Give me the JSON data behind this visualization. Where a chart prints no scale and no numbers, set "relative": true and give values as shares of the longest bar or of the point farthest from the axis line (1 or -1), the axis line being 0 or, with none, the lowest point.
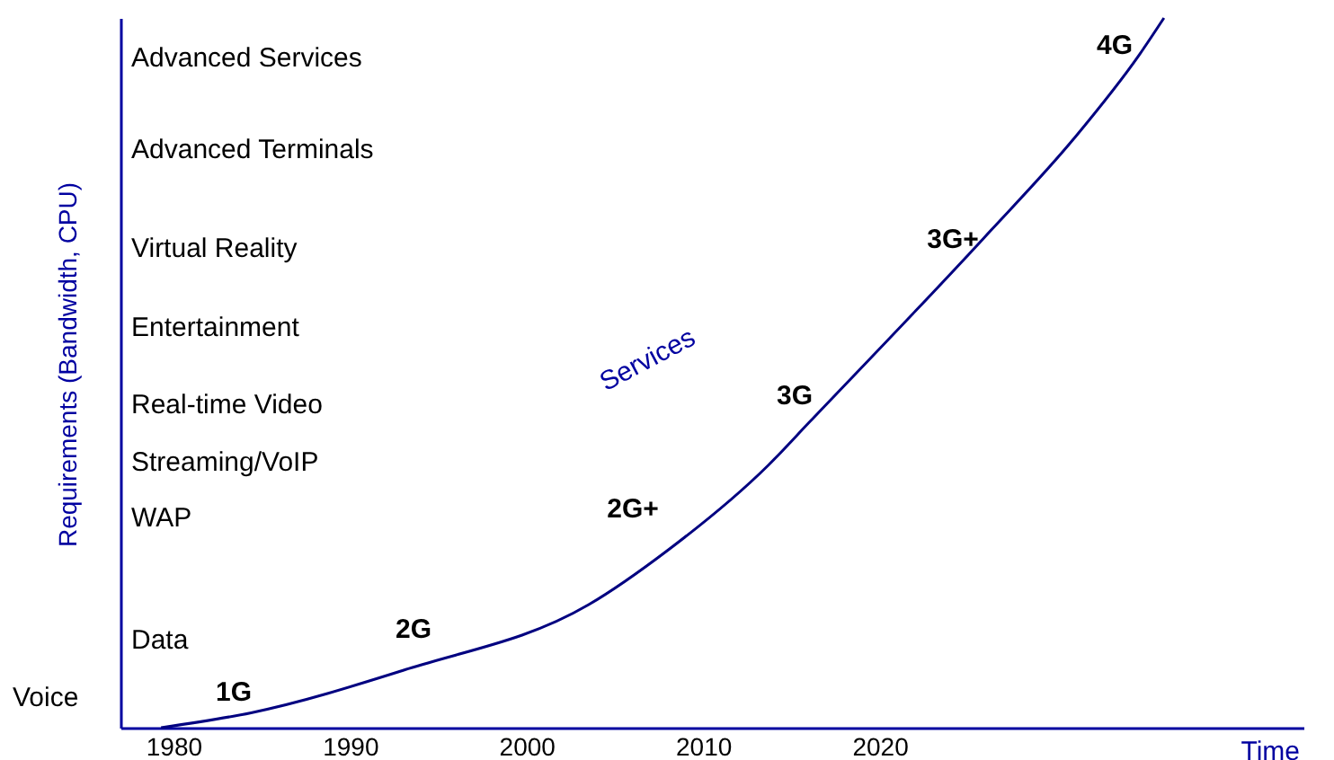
{
  "chart_data": {
    "type": "line",
    "relative": true,
    "xlabel": "Time",
    "ylabel": "Requirements (Bandwidth, CPU)",
    "x": [
      1979.3,
      1984.4,
      1993.3,
      2003.5,
      2008.0,
      2013.7,
      2016.0,
      2025.9,
      2031.0,
      2034.7,
      2036.1
    ],
    "series": [
      {
        "color": "#000080",
        "values": [
          0,
          0.021,
          0.083,
          0.173,
          0.25,
          0.37,
          0.43,
          0.69,
          0.83,
          0.948,
          1.0
        ]
      }
    ],
    "xlim": [
      1977,
      2044
    ],
    "xticks": [
      1980,
      1990,
      2000,
      2010,
      2020
    ],
    "grid": false,
    "marker": "none",
    "line_style": "solid",
    "annotations": [
      "Voice",
      "Data",
      "WAP",
      "Streaming/VoIP",
      "Real-time Video",
      "Entertainment",
      "Virtual Reality",
      "Advanced Terminals",
      "Advanced Services",
      "Services",
      "1G",
      "2G",
      "2G+",
      "3G",
      "3G+",
      "4G"
    ]
  }
}
